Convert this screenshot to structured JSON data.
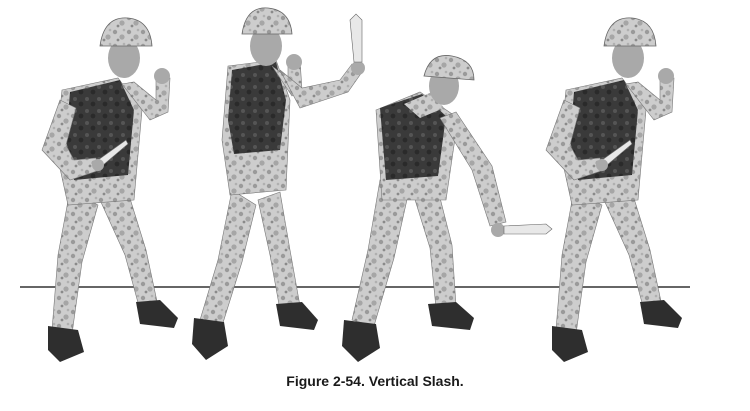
{
  "figure": {
    "caption": "Figure 2-54. Vertical Slash.",
    "frames": [
      {
        "pose": "guard-stance"
      },
      {
        "pose": "knife-raised-overhead"
      },
      {
        "pose": "downward-slash-follow-through"
      },
      {
        "pose": "return-to-guard"
      }
    ]
  },
  "colors": {
    "uniform_light": "#cfcfcf",
    "uniform_dark": "#8f8f8f",
    "vest": "#3c3c3c",
    "skin": "#a9a9a9",
    "boot": "#2e2e2e",
    "blade": "#e8e8e8",
    "ground_line": "#333333"
  }
}
